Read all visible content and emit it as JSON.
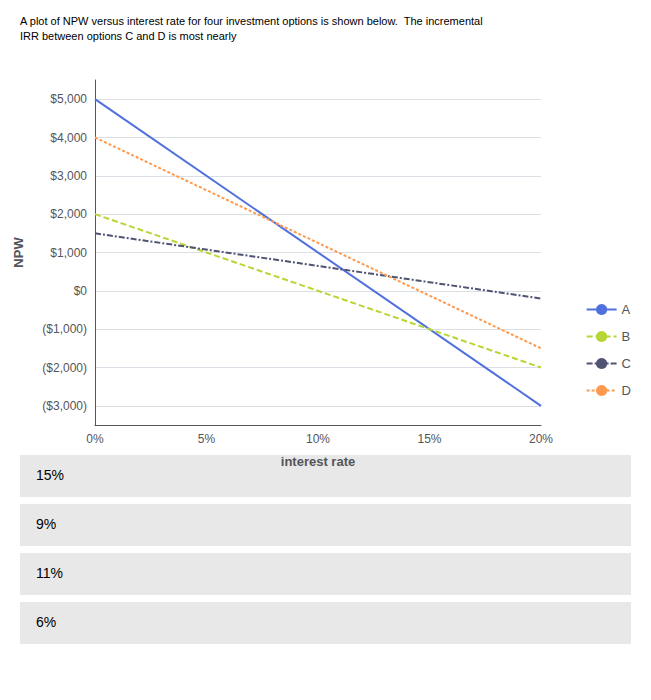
{
  "chart_data": {
    "type": "line",
    "title": "A plot of NPW versus interest rate for four investment options is shown below.  The incremental",
    "subtitle": "IRR between options C and D is most nearly",
    "xlabel": "interest rate",
    "ylabel": "NPW",
    "x": [
      0,
      0.2
    ],
    "series": [
      {
        "name": "A",
        "values": [
          5000,
          -3000
        ],
        "line_style": "solid"
      },
      {
        "name": "B",
        "values": [
          2000,
          -2000
        ],
        "line_style": "dashed"
      },
      {
        "name": "C",
        "values": [
          1500,
          -200
        ],
        "line_style": "dashdot"
      },
      {
        "name": "D",
        "values": [
          4000,
          -1500
        ],
        "line_style": "dotted"
      }
    ],
    "xlim": [
      0,
      0.2
    ],
    "xticks": [
      {
        "value": 0,
        "label": "0%"
      },
      {
        "value": 0.05,
        "label": "5%"
      },
      {
        "value": 0.1,
        "label": "10%"
      },
      {
        "value": 0.15,
        "label": "15%"
      },
      {
        "value": 0.2,
        "label": "20%"
      }
    ],
    "ylim": [
      -3500,
      5500
    ],
    "yticks": [
      {
        "value": -3000,
        "label": "($3,000)"
      },
      {
        "value": -2000,
        "label": "($2,000)"
      },
      {
        "value": -1000,
        "label": "($1,000)"
      },
      {
        "value": 0,
        "label": "$0"
      },
      {
        "value": 1000,
        "label": "$1,000"
      },
      {
        "value": 2000,
        "label": "$2,000"
      },
      {
        "value": 3000,
        "label": "$3,000"
      },
      {
        "value": 4000,
        "label": "$4,000"
      },
      {
        "value": 5000,
        "label": "$5,000"
      }
    ],
    "grid": true,
    "legend": "right",
    "annotations": [
      "15%",
      "9%",
      "11%",
      "6%"
    ]
  }
}
